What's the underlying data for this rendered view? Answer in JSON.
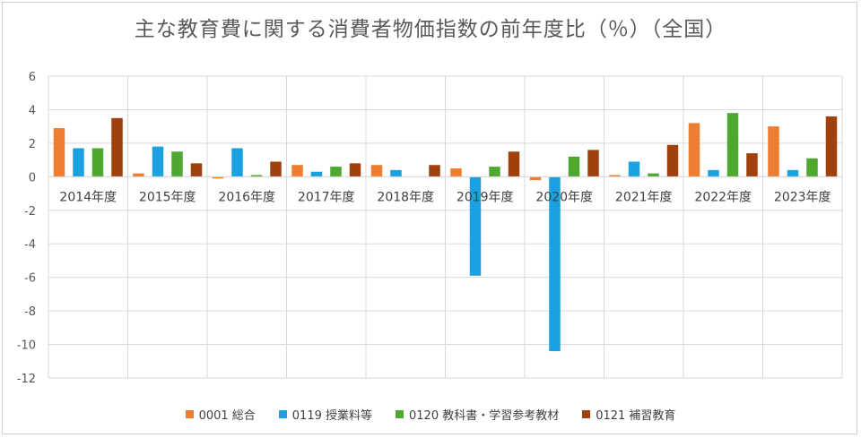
{
  "chart_data": {
    "type": "bar",
    "title": "主な教育費に関する消費者物価指数の前年度比（％）（全国）",
    "xlabel": "",
    "ylabel": "",
    "ylim": [
      -12,
      6
    ],
    "yticks": [
      6,
      4,
      2,
      0,
      -2,
      -4,
      -6,
      -8,
      -10,
      -12
    ],
    "grid": true,
    "legend_position": "bottom",
    "categories": [
      "2014年度",
      "2015年度",
      "2016年度",
      "2017年度",
      "2018年度",
      "2019年度",
      "2020年度",
      "2021年度",
      "2022年度",
      "2023年度"
    ],
    "series": [
      {
        "name": "0001 総合",
        "color": "#ED7D31",
        "values": [
          2.9,
          0.2,
          -0.1,
          0.7,
          0.7,
          0.5,
          -0.2,
          0.1,
          3.2,
          3.0
        ]
      },
      {
        "name": "0119 授業料等",
        "color": "#1BA1E2",
        "values": [
          1.7,
          1.8,
          1.7,
          0.3,
          0.4,
          -5.9,
          -10.4,
          0.9,
          0.4,
          0.4
        ]
      },
      {
        "name": "0120 教科書・学習参考教材",
        "color": "#4EA72E",
        "values": [
          1.7,
          1.5,
          0.1,
          0.6,
          0.0,
          0.6,
          1.2,
          0.2,
          3.8,
          1.1
        ]
      },
      {
        "name": "0121 補習教育",
        "color": "#A0410D",
        "values": [
          3.5,
          0.8,
          0.9,
          0.8,
          0.7,
          1.5,
          1.6,
          1.9,
          1.4,
          3.6
        ]
      }
    ]
  }
}
